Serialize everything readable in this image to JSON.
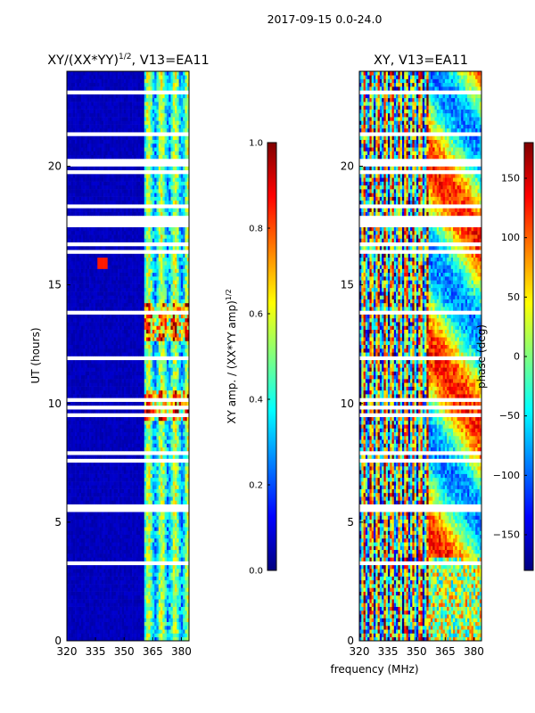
{
  "figure_title": "2017-09-15 0.0-24.0",
  "shared_xlabel": "frequency (MHz)",
  "colors": {
    "jet": [
      "#00007f",
      "#0000ff",
      "#007fff",
      "#00ffff",
      "#7fff7f",
      "#ffff00",
      "#ff7f00",
      "#ff0000",
      "#7f0000"
    ],
    "flag_gap": "#ffffff"
  },
  "chart_data": [
    {
      "type": "heatmap",
      "title": "XY/(XX*YY)",
      "title_sup": "1/2",
      "title_suffix": ", V13=EA11",
      "ylabel": "UT (hours)",
      "xlim": [
        320,
        384
      ],
      "ylim": [
        0,
        24
      ],
      "xticks": [
        320,
        335,
        350,
        365,
        380
      ],
      "yticks": [
        0,
        5,
        10,
        15,
        20
      ],
      "grid": false,
      "colorbar": {
        "label": "XY amp. / (XX*YY amp)",
        "label_sup": "1/2",
        "range": [
          0.0,
          1.0
        ],
        "ticks": [
          "0.0",
          "0.2",
          "0.4",
          "0.6",
          "0.8",
          "1.0"
        ]
      }
    },
    {
      "type": "heatmap",
      "title": "XY, V13=EA11",
      "ylabel": "",
      "xlim": [
        320,
        384
      ],
      "ylim": [
        0,
        24
      ],
      "xticks": [
        320,
        335,
        350,
        365,
        380
      ],
      "yticks": [
        0,
        5,
        10,
        15,
        20
      ],
      "grid": false,
      "colorbar": {
        "label": "phase (deg)",
        "range": [
          -180,
          180
        ],
        "ticks": [
          "−150",
          "−100",
          "−50",
          "0",
          "50",
          "100",
          "150"
        ]
      }
    }
  ]
}
